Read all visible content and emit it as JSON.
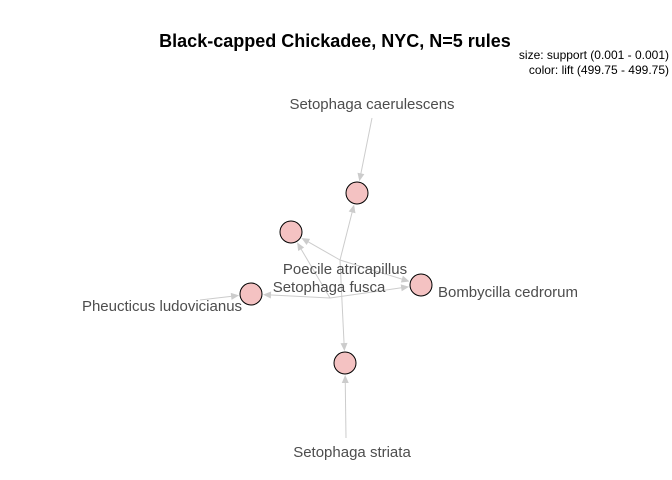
{
  "title": "Black-capped Chickadee, NYC, N=5 rules",
  "legend": {
    "size": "size: support (0.001 - 0.001)",
    "color": "color: lift (499.75 - 499.75)"
  },
  "colors": {
    "rule_node": "#f4c2c2",
    "edge": "#cccccc",
    "label": "#4d4d4d"
  },
  "items": [
    {
      "id": "caerulescens",
      "label": "Setophaga caerulescens"
    },
    {
      "id": "atricapillus",
      "label": "Poecile atricapillus"
    },
    {
      "id": "fusca",
      "label": "Setophaga fusca"
    },
    {
      "id": "ludovicianus",
      "label": "Pheucticus ludovicianus"
    },
    {
      "id": "cedrorum",
      "label": "Bombycilla cedrorum"
    },
    {
      "id": "striata",
      "label": "Setophaga striata"
    }
  ],
  "rules": [
    {
      "id": "rule-1"
    },
    {
      "id": "rule-2"
    },
    {
      "id": "rule-3"
    },
    {
      "id": "rule-4"
    },
    {
      "id": "rule-5"
    }
  ],
  "edges": [
    {
      "from": "caerulescens",
      "to": "rule-1"
    },
    {
      "from": "atricapillus",
      "to": "rule-1"
    },
    {
      "from": "atricapillus",
      "to": "rule-2"
    },
    {
      "from": "fusca",
      "to": "rule-2"
    },
    {
      "from": "ludovicianus",
      "to": "rule-3"
    },
    {
      "from": "fusca",
      "to": "rule-3"
    },
    {
      "from": "atricapillus",
      "to": "rule-4"
    },
    {
      "from": "fusca",
      "to": "rule-4"
    },
    {
      "from": "striata",
      "to": "rule-5"
    },
    {
      "from": "atricapillus",
      "to": "rule-5"
    }
  ]
}
